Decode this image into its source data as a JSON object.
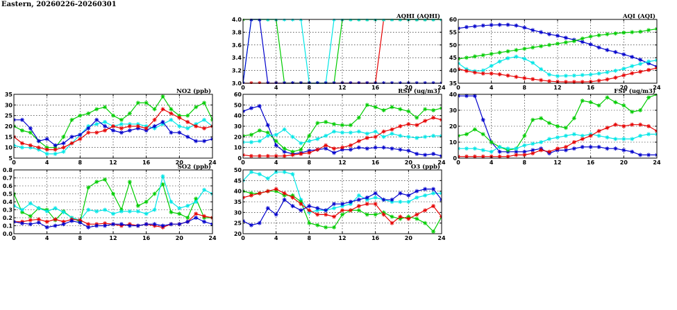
{
  "page_title": "Eastern, 20260226-20260301",
  "colors": {
    "blue": "#0000cc",
    "green": "#00cc00",
    "cyan": "#00e6e6",
    "red": "#e60000"
  },
  "chart_data": [
    {
      "id": "aqhi",
      "type": "line",
      "title": "AQHI (AQHI)",
      "xlim": [
        0,
        24
      ],
      "ylim": [
        3.0,
        4.0
      ],
      "xticks": [
        0,
        4,
        8,
        12,
        16,
        20,
        24
      ],
      "yticks": [
        3.0,
        3.2,
        3.4,
        3.6,
        3.8,
        4.0
      ],
      "ytick_labels": [
        "3.0",
        "3.2",
        "3.4",
        "3.6",
        "3.8",
        "4.0"
      ],
      "x": [
        0,
        1,
        2,
        3,
        4,
        5,
        6,
        7,
        8,
        9,
        10,
        11,
        12,
        13,
        14,
        15,
        16,
        17,
        18,
        19,
        20,
        21,
        22,
        23,
        24
      ],
      "series": [
        {
          "color": "#e60000",
          "values": [
            3,
            3,
            3,
            3,
            3,
            3,
            3,
            3,
            3,
            3,
            3,
            3,
            3,
            3,
            3,
            3,
            3,
            4,
            4,
            4,
            4,
            4,
            4,
            4,
            4
          ]
        },
        {
          "color": "#00cc00",
          "values": [
            4,
            4,
            4,
            4,
            4,
            3,
            3,
            3,
            3,
            3,
            3,
            3,
            4,
            4,
            4,
            4,
            4,
            4,
            4,
            4,
            4,
            4,
            4,
            4,
            4
          ]
        },
        {
          "color": "#00e6e6",
          "values": [
            3,
            4,
            4,
            4,
            4,
            4,
            4,
            4,
            3,
            3,
            3,
            4,
            4,
            4,
            4,
            4,
            4,
            4,
            4,
            4,
            4,
            4,
            4,
            4,
            4
          ]
        },
        {
          "color": "#0000cc",
          "values": [
            3,
            4,
            4,
            3,
            3,
            3,
            3,
            3,
            3,
            3,
            3,
            3,
            3,
            3,
            3,
            3,
            3,
            3,
            3,
            3,
            3,
            3,
            3,
            3,
            3
          ]
        }
      ]
    },
    {
      "id": "aqi",
      "type": "line",
      "title": "AQI (AQI)",
      "xlim": [
        0,
        24
      ],
      "ylim": [
        35,
        60
      ],
      "xticks": [
        0,
        4,
        8,
        12,
        16,
        20,
        24
      ],
      "yticks": [
        35,
        40,
        45,
        50,
        55,
        60
      ],
      "x": [
        0,
        1,
        2,
        3,
        4,
        5,
        6,
        7,
        8,
        9,
        10,
        11,
        12,
        13,
        14,
        15,
        16,
        17,
        18,
        19,
        20,
        21,
        22,
        23,
        24
      ],
      "series": [
        {
          "color": "#0000cc",
          "values": [
            56.5,
            57,
            57.3,
            57.6,
            57.8,
            57.9,
            57.9,
            57.6,
            56.8,
            55.8,
            55,
            54.2,
            53.6,
            52.8,
            52,
            51.2,
            50.2,
            49,
            48,
            47.2,
            46.3,
            45.3,
            44.2,
            42.8,
            41.5
          ]
        },
        {
          "color": "#00cc00",
          "values": [
            44.5,
            45,
            45.5,
            46,
            46.5,
            47,
            47.5,
            48,
            48.5,
            49,
            49.5,
            50,
            50.5,
            51,
            51.5,
            52.5,
            53.3,
            53.8,
            54.2,
            54.5,
            54.8,
            55,
            55.2,
            55.8,
            56.3
          ]
        },
        {
          "color": "#00e6e6",
          "values": [
            42.8,
            40.5,
            39.7,
            40,
            41.8,
            43.5,
            44.8,
            45.4,
            44.6,
            43,
            40.5,
            38.4,
            37.8,
            37.9,
            38,
            38.2,
            38.4,
            38.8,
            39.3,
            39.9,
            40.7,
            41.7,
            42.6,
            43.5,
            44
          ]
        },
        {
          "color": "#e60000",
          "values": [
            40.6,
            39.8,
            39.2,
            38.8,
            38.8,
            38.5,
            38,
            37.5,
            37,
            36.6,
            36.2,
            35.8,
            35.6,
            35.5,
            35.5,
            35.5,
            35.6,
            36,
            36.5,
            37.2,
            38.1,
            38.9,
            39.5,
            40.2,
            41
          ]
        }
      ]
    },
    {
      "id": "no2",
      "type": "line",
      "title": "NO2 (ppb)",
      "xlim": [
        0,
        24
      ],
      "ylim": [
        5,
        35
      ],
      "xticks": [
        0,
        4,
        8,
        12,
        16,
        20,
        24
      ],
      "yticks": [
        5,
        10,
        15,
        20,
        25,
        30,
        35
      ],
      "x": [
        0,
        1,
        2,
        3,
        4,
        5,
        6,
        7,
        8,
        9,
        10,
        11,
        12,
        13,
        14,
        15,
        16,
        17,
        18,
        19,
        20,
        21,
        22,
        23,
        24
      ],
      "series": [
        {
          "color": "#00cc00",
          "values": [
            20,
            18,
            17,
            13,
            10,
            10,
            15,
            23,
            25,
            26,
            28,
            29,
            25,
            23,
            26,
            31,
            31,
            28,
            34,
            28,
            25,
            25,
            29,
            31,
            23
          ]
        },
        {
          "color": "#00e6e6",
          "values": [
            11,
            10,
            10,
            9,
            7,
            7,
            8,
            12,
            16,
            20,
            21,
            22,
            20,
            21,
            21,
            21,
            20,
            19,
            21,
            23,
            20,
            19,
            21,
            23,
            20
          ]
        },
        {
          "color": "#0000cc",
          "values": [
            23,
            23,
            19,
            13,
            14,
            11,
            12,
            15,
            16,
            19,
            23,
            20,
            18,
            17,
            18,
            19,
            18,
            20,
            22,
            17,
            17,
            15,
            13,
            13,
            14
          ]
        },
        {
          "color": "#e60000",
          "values": [
            15,
            12,
            11,
            10,
            9,
            9,
            10,
            12,
            14,
            17,
            17,
            18,
            20,
            19,
            20,
            20,
            19,
            23,
            28,
            26,
            24,
            22,
            20,
            19,
            20
          ]
        }
      ]
    },
    {
      "id": "rsp",
      "type": "line",
      "title": "RSP (ug/m3)",
      "xlim": [
        0,
        24
      ],
      "ylim": [
        0,
        60
      ],
      "xticks": [
        0,
        4,
        8,
        12,
        16,
        20,
        24
      ],
      "yticks": [
        0,
        10,
        20,
        30,
        40,
        50,
        60
      ],
      "x": [
        0,
        1,
        2,
        3,
        4,
        5,
        6,
        7,
        8,
        9,
        10,
        11,
        12,
        13,
        14,
        15,
        16,
        17,
        18,
        19,
        20,
        21,
        22,
        23,
        24
      ],
      "series": [
        {
          "color": "#0000cc",
          "values": [
            44,
            47,
            49,
            31,
            12,
            6,
            4,
            5,
            7,
            8,
            9,
            5,
            8,
            8,
            10,
            9,
            10,
            10,
            9,
            8,
            7,
            4,
            3,
            4,
            2
          ]
        },
        {
          "color": "#00cc00",
          "values": [
            21,
            22,
            26,
            24,
            16,
            9,
            6,
            8,
            21,
            33,
            34,
            32,
            31,
            31,
            38,
            50,
            48,
            45,
            48,
            46,
            44,
            38,
            46,
            45,
            47
          ]
        },
        {
          "color": "#00e6e6",
          "values": [
            15,
            15,
            16,
            21,
            22,
            27,
            20,
            14,
            16,
            18,
            21,
            25,
            24,
            24,
            25,
            23,
            25,
            20,
            23,
            21,
            20,
            19,
            20,
            21,
            21
          ]
        },
        {
          "color": "#e60000",
          "values": [
            3,
            2,
            2,
            2,
            2,
            2,
            3,
            4,
            5,
            8,
            12,
            9,
            10,
            12,
            16,
            19,
            20,
            25,
            27,
            30,
            32,
            31,
            35,
            38,
            36
          ]
        }
      ]
    },
    {
      "id": "fsp",
      "type": "line",
      "title": "FSP (ug/m3)",
      "xlim": [
        0,
        24
      ],
      "ylim": [
        0,
        40
      ],
      "xticks": [
        0,
        4,
        8,
        12,
        16,
        20,
        24
      ],
      "yticks": [
        0,
        10,
        20,
        30,
        40
      ],
      "x": [
        0,
        1,
        2,
        3,
        4,
        5,
        6,
        7,
        8,
        9,
        10,
        11,
        12,
        13,
        14,
        15,
        16,
        17,
        18,
        19,
        20,
        21,
        22,
        23,
        24
      ],
      "series": [
        {
          "color": "#0000cc",
          "values": [
            39,
            39,
            39,
            24,
            10,
            4,
            4,
            4,
            4,
            5,
            6,
            3,
            5,
            5,
            6,
            7,
            7,
            7,
            6,
            6,
            5,
            4,
            2,
            2,
            2
          ]
        },
        {
          "color": "#00cc00",
          "values": [
            14,
            15,
            18,
            15,
            10,
            7,
            5,
            6,
            14,
            24,
            25,
            22,
            20,
            19,
            25,
            36,
            35,
            33,
            38,
            35,
            33,
            29,
            30,
            38,
            40
          ]
        },
        {
          "color": "#00e6e6",
          "values": [
            6,
            6,
            6,
            5,
            4,
            7,
            6,
            6,
            8,
            9,
            10,
            12,
            13,
            14,
            15,
            14,
            15,
            14,
            13,
            12,
            12,
            12,
            14,
            15,
            15
          ]
        },
        {
          "color": "#e60000",
          "values": [
            1,
            1,
            1,
            1,
            1,
            1,
            1,
            2,
            2,
            3,
            5,
            4,
            6,
            7,
            10,
            12,
            14,
            17,
            19,
            21,
            20,
            21,
            21,
            20,
            17
          ]
        }
      ]
    },
    {
      "id": "so2",
      "type": "line",
      "title": "SO2 (ppb)",
      "xlim": [
        0,
        24
      ],
      "ylim": [
        0.0,
        0.8
      ],
      "xticks": [
        0,
        4,
        8,
        12,
        16,
        20,
        24
      ],
      "yticks": [
        0.0,
        0.1,
        0.2,
        0.3,
        0.4,
        0.5,
        0.6,
        0.7,
        0.8
      ],
      "ytick_labels": [
        "0.0",
        "0.1",
        "0.2",
        "0.3",
        "0.4",
        "0.5",
        "0.6",
        "0.7",
        "0.8"
      ],
      "x": [
        0,
        1,
        2,
        3,
        4,
        5,
        6,
        7,
        8,
        9,
        10,
        11,
        12,
        13,
        14,
        15,
        16,
        17,
        18,
        19,
        20,
        21,
        22,
        23,
        24
      ],
      "series": [
        {
          "color": "#00cc00",
          "values": [
            0.5,
            0.27,
            0.22,
            0.32,
            0.3,
            0.17,
            0.28,
            0.2,
            0.15,
            0.58,
            0.65,
            0.68,
            0.5,
            0.3,
            0.65,
            0.35,
            0.4,
            0.5,
            0.62,
            0.27,
            0.25,
            0.2,
            0.44,
            0.2,
            0.2
          ]
        },
        {
          "color": "#00e6e6",
          "values": [
            0.35,
            0.3,
            0.38,
            0.32,
            0.28,
            0.32,
            0.27,
            0.2,
            0.17,
            0.3,
            0.28,
            0.3,
            0.25,
            0.28,
            0.28,
            0.28,
            0.25,
            0.3,
            0.72,
            0.4,
            0.32,
            0.35,
            0.4,
            0.55,
            0.5
          ]
        },
        {
          "color": "#e60000",
          "values": [
            0.15,
            0.15,
            0.17,
            0.18,
            0.15,
            0.18,
            0.15,
            0.18,
            0.17,
            0.12,
            0.12,
            0.13,
            0.12,
            0.1,
            0.12,
            0.1,
            0.12,
            0.1,
            0.08,
            0.12,
            0.12,
            0.15,
            0.25,
            0.22,
            0.2
          ]
        },
        {
          "color": "#0000cc",
          "values": [
            0.15,
            0.13,
            0.12,
            0.14,
            0.08,
            0.1,
            0.12,
            0.16,
            0.14,
            0.08,
            0.1,
            0.1,
            0.12,
            0.12,
            0.1,
            0.1,
            0.12,
            0.12,
            0.1,
            0.12,
            0.12,
            0.15,
            0.2,
            0.15,
            0.12
          ]
        }
      ]
    },
    {
      "id": "o3",
      "type": "line",
      "title": "O3 (ppb)",
      "xlim": [
        0,
        24
      ],
      "ylim": [
        20,
        50
      ],
      "xticks": [
        0,
        4,
        8,
        12,
        16,
        20,
        24
      ],
      "yticks": [
        20,
        25,
        30,
        35,
        40,
        45,
        50
      ],
      "x": [
        0,
        1,
        2,
        3,
        4,
        5,
        6,
        7,
        8,
        9,
        10,
        11,
        12,
        13,
        14,
        15,
        16,
        17,
        18,
        19,
        20,
        21,
        22,
        23,
        24
      ],
      "series": [
        {
          "color": "#00e6e6",
          "values": [
            45,
            49,
            48,
            46,
            49,
            49,
            48,
            36,
            30,
            31,
            31,
            32,
            33,
            34,
            38,
            36,
            37,
            36,
            35,
            35,
            35,
            37,
            38,
            39,
            39
          ]
        },
        {
          "color": "#00cc00",
          "values": [
            40,
            39,
            39,
            40,
            40,
            38,
            38,
            35,
            25,
            24,
            23,
            23,
            29,
            31,
            31,
            29,
            29,
            30,
            28,
            27,
            28,
            27,
            25,
            21,
            28
          ]
        },
        {
          "color": "#e60000",
          "values": [
            37,
            38,
            39,
            40,
            41,
            39,
            37,
            34,
            31,
            29,
            29,
            28,
            31,
            31,
            33,
            34,
            34,
            29,
            25,
            28,
            27,
            29,
            31,
            33,
            28
          ]
        },
        {
          "color": "#0000cc",
          "values": [
            26,
            24,
            25,
            32,
            29,
            36,
            33,
            31,
            33,
            32,
            31,
            34,
            34,
            35,
            36,
            37,
            39,
            36,
            36,
            39,
            38,
            40,
            41,
            41,
            36
          ]
        }
      ]
    }
  ]
}
